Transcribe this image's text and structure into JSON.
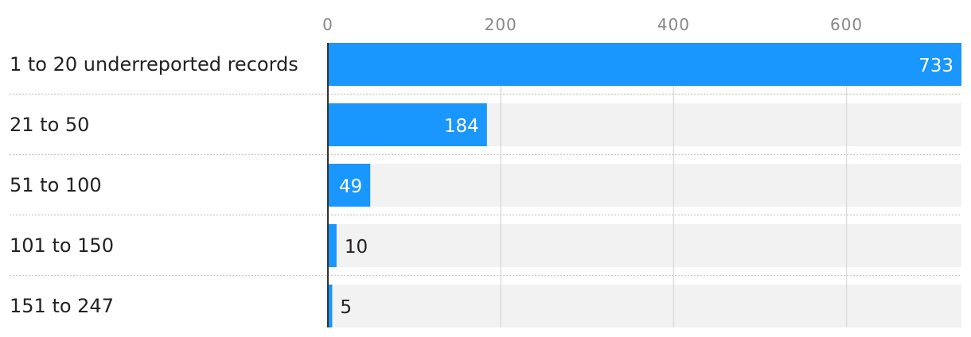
{
  "chart_data": {
    "type": "bar",
    "orientation": "horizontal",
    "categories": [
      "1 to 20 underreported records",
      "21 to 50",
      "51 to 100",
      "101 to 150",
      "151 to 247"
    ],
    "values": [
      733,
      184,
      49,
      10,
      5
    ],
    "xlim": [
      0,
      733
    ],
    "xticks": [
      "0",
      "200",
      "400",
      "600"
    ],
    "xtick_values": [
      0,
      200,
      400,
      600
    ],
    "grid": true,
    "legend": "none",
    "colors": {
      "bar": "#1a96ff",
      "track": "#f2f2f2",
      "grid": "#dddddd",
      "axis": "#333333"
    }
  }
}
